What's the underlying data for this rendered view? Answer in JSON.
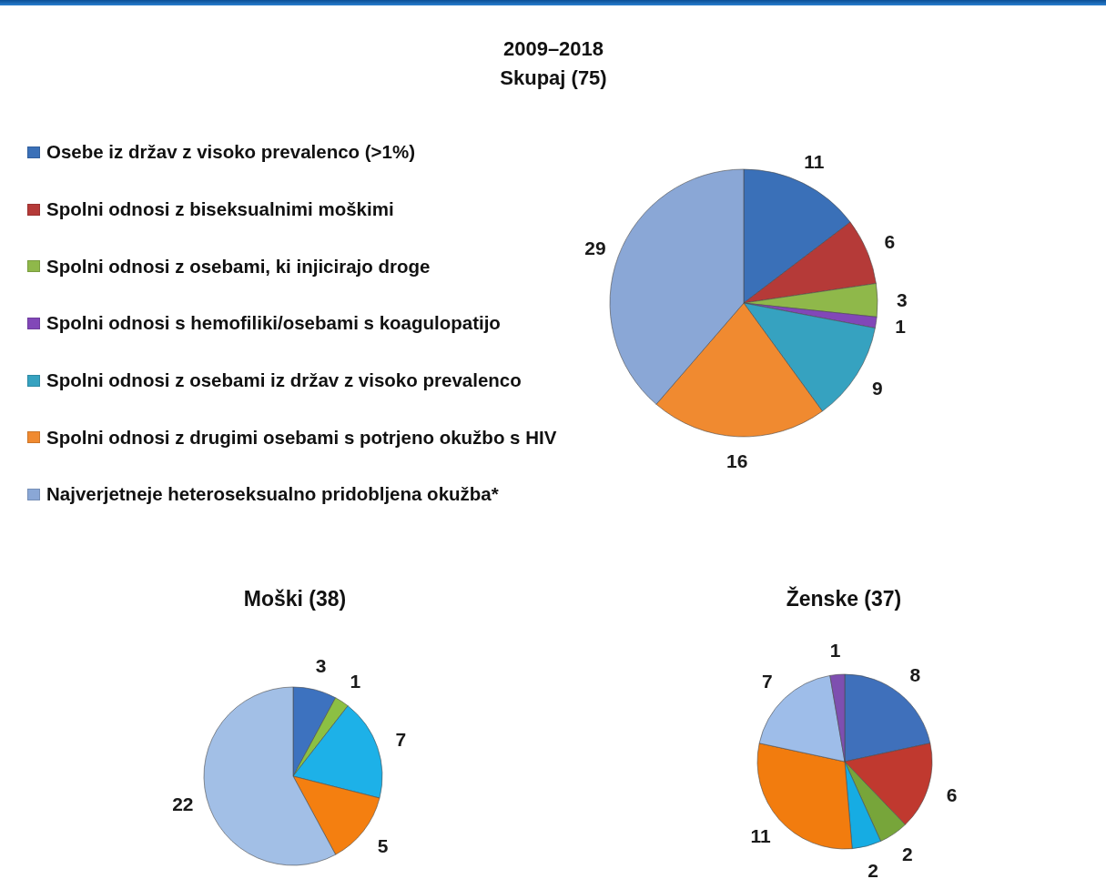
{
  "chart_data": [
    {
      "type": "pie",
      "title": "2009–2018",
      "subtitle": "Skupaj (75)",
      "categories": [
        "Osebe iz držav z visoko prevalenco (>1%)",
        "Spolni odnosi z biseksualnimi moškimi",
        "Spolni odnosi z osebami, ki injicirajo droge",
        "Spolni odnosi s hemofiliki/osebami s koagulopatijo",
        "Spolni odnosi z osebami iz držav z visoko prevalenco",
        "Spolni odnosi z drugimi osebami s potrjeno okužbo s HIV",
        "Najverjetneje heteroseksualno pridobljena okužba*"
      ],
      "values": [
        11,
        6,
        3,
        1,
        9,
        16,
        29
      ],
      "colors": [
        "#3a70b8",
        "#b53a38",
        "#8fb84a",
        "#8247b8",
        "#36a2c0",
        "#f08a30",
        "#8aa7d6"
      ],
      "data_labels": true,
      "legend": "left"
    },
    {
      "type": "pie",
      "title": "Moški (38)",
      "categories": [
        null,
        null,
        null,
        null,
        null
      ],
      "values": [
        3,
        1,
        7,
        5,
        22
      ],
      "colors": [
        "#3d72bf",
        "#8cc043",
        "#1db1e8",
        "#f47f10",
        "#a2bfe6"
      ],
      "data_labels": true
    },
    {
      "type": "pie",
      "title": "Ženske (37)",
      "categories": [
        null,
        null,
        null,
        null,
        null,
        null,
        null
      ],
      "values": [
        8,
        6,
        2,
        2,
        11,
        7,
        1
      ],
      "colors": [
        "#3f70bb",
        "#c0392f",
        "#77a53a",
        "#16ace3",
        "#f27c0e",
        "#9ebde9",
        "#7e4fb0"
      ],
      "data_labels": true
    }
  ]
}
